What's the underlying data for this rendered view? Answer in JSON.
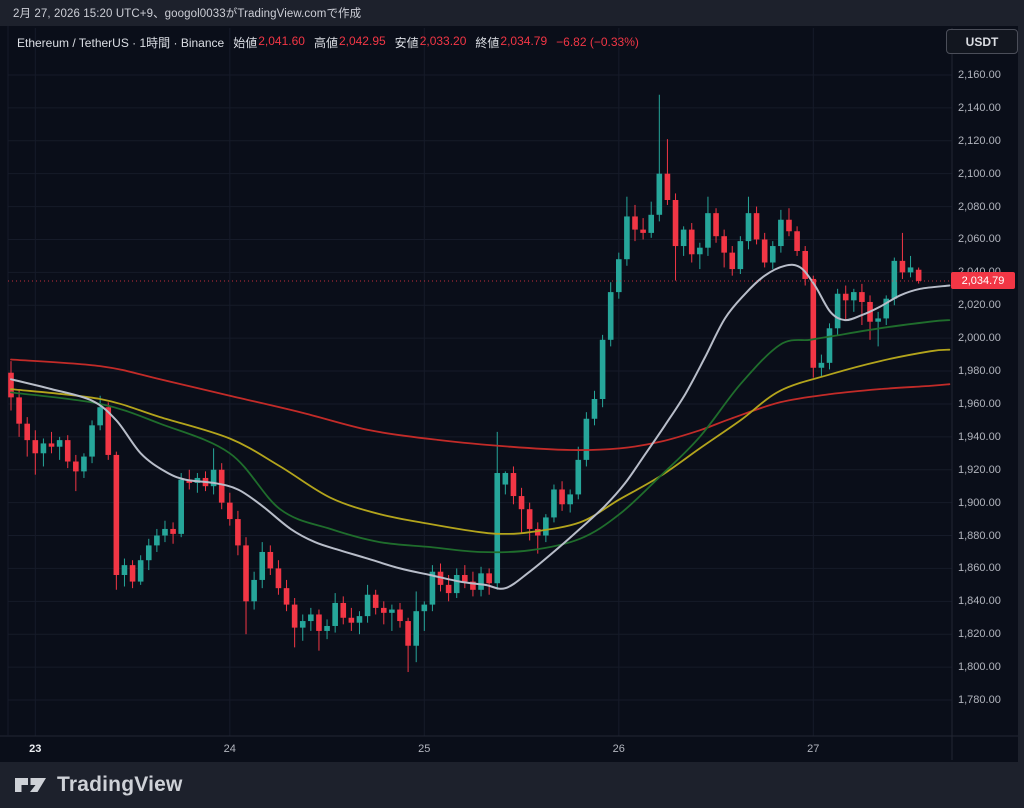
{
  "attribution_bar": {
    "text": "2月 27, 2026 15:20 UTC+9、googol0033がTradingView.comで作成"
  },
  "legend": {
    "symbol_title": "Ethereum / TetherUS · 1時間 · Binance",
    "fields": [
      {
        "label": "始値",
        "value": "2,041.60"
      },
      {
        "label": "高値",
        "value": "2,042.95"
      },
      {
        "label": "安値",
        "value": "2,033.20"
      },
      {
        "label": "終値",
        "value": "2,034.79"
      }
    ],
    "change": "−6.82 (−0.33%)"
  },
  "price_scale": {
    "currency_button": "USDT",
    "labels": [
      "2,160.00",
      "2,140.00",
      "2,120.00",
      "2,100.00",
      "2,080.00",
      "2,060.00",
      "2,040.00",
      "2,020.00",
      "2,000.00",
      "1,980.00",
      "1,960.00",
      "1,940.00",
      "1,920.00",
      "1,900.00",
      "1,880.00",
      "1,860.00",
      "1,840.00",
      "1,820.00",
      "1,800.00",
      "1,780.00"
    ],
    "last_price_label": "2,034.79"
  },
  "footer": {
    "brand": "TradingView"
  },
  "colors": {
    "up": "#26a69a",
    "down": "#f23645",
    "grid": "#161b29",
    "separator": "#222633",
    "axis_text": "#b2b5be",
    "chart_bg": "#0a0e19",
    "frame_bg": "#1d212c"
  },
  "chart_data": {
    "type": "candlestick",
    "symbol": "Ethereum / TetherUS",
    "exchange": "Binance",
    "interval": "1時間",
    "last_price": 2034.79,
    "price_axis": {
      "min": 1780,
      "max": 2160,
      "step": 20
    },
    "time_axis_ticks": [
      {
        "index": 3,
        "label": "23",
        "bold": true
      },
      {
        "index": 27,
        "label": "24",
        "bold": false
      },
      {
        "index": 51,
        "label": "25",
        "bold": false
      },
      {
        "index": 75,
        "label": "26",
        "bold": false
      },
      {
        "index": 99,
        "label": "27",
        "bold": false
      }
    ],
    "candles_ohlc": [
      [
        1979,
        1986,
        1956,
        1964
      ],
      [
        1964,
        1969,
        1940,
        1948
      ],
      [
        1948,
        1952,
        1928,
        1938
      ],
      [
        1938,
        1944,
        1917,
        1930
      ],
      [
        1930,
        1939,
        1922,
        1936
      ],
      [
        1936,
        1943,
        1930,
        1934
      ],
      [
        1934,
        1940,
        1926,
        1938
      ],
      [
        1938,
        1941,
        1921,
        1925
      ],
      [
        1925,
        1929,
        1907,
        1919
      ],
      [
        1919,
        1930,
        1915,
        1928
      ],
      [
        1928,
        1950,
        1924,
        1947
      ],
      [
        1947,
        1965,
        1944,
        1958
      ],
      [
        1958,
        1961,
        1926,
        1929
      ],
      [
        1929,
        1931,
        1847,
        1856
      ],
      [
        1856,
        1866,
        1849,
        1862
      ],
      [
        1862,
        1865,
        1848,
        1852
      ],
      [
        1852,
        1868,
        1850,
        1865
      ],
      [
        1865,
        1878,
        1859,
        1874
      ],
      [
        1874,
        1884,
        1870,
        1880
      ],
      [
        1880,
        1889,
        1876,
        1884
      ],
      [
        1884,
        1888,
        1875,
        1881
      ],
      [
        1881,
        1918,
        1879,
        1914
      ],
      [
        1914,
        1920,
        1908,
        1912
      ],
      [
        1912,
        1918,
        1906,
        1915
      ],
      [
        1915,
        1919,
        1907,
        1910
      ],
      [
        1910,
        1933,
        1905,
        1920
      ],
      [
        1920,
        1924,
        1896,
        1900
      ],
      [
        1900,
        1906,
        1886,
        1890
      ],
      [
        1890,
        1895,
        1868,
        1874
      ],
      [
        1874,
        1879,
        1820,
        1840
      ],
      [
        1840,
        1858,
        1835,
        1853
      ],
      [
        1853,
        1876,
        1848,
        1870
      ],
      [
        1870,
        1874,
        1856,
        1860
      ],
      [
        1860,
        1865,
        1844,
        1848
      ],
      [
        1848,
        1853,
        1834,
        1838
      ],
      [
        1838,
        1842,
        1812,
        1824
      ],
      [
        1824,
        1832,
        1816,
        1828
      ],
      [
        1828,
        1836,
        1822,
        1832
      ],
      [
        1832,
        1835,
        1810,
        1822
      ],
      [
        1822,
        1829,
        1817,
        1825
      ],
      [
        1825,
        1845,
        1821,
        1839
      ],
      [
        1839,
        1843,
        1826,
        1830
      ],
      [
        1830,
        1836,
        1822,
        1827
      ],
      [
        1827,
        1834,
        1820,
        1831
      ],
      [
        1831,
        1850,
        1827,
        1844
      ],
      [
        1844,
        1847,
        1832,
        1836
      ],
      [
        1836,
        1840,
        1826,
        1833
      ],
      [
        1833,
        1838,
        1822,
        1835
      ],
      [
        1835,
        1839,
        1824,
        1828
      ],
      [
        1828,
        1830,
        1797,
        1813
      ],
      [
        1813,
        1846,
        1803,
        1834
      ],
      [
        1834,
        1840,
        1822,
        1838
      ],
      [
        1838,
        1862,
        1834,
        1858
      ],
      [
        1858,
        1863,
        1846,
        1850
      ],
      [
        1850,
        1856,
        1840,
        1845
      ],
      [
        1845,
        1860,
        1842,
        1856
      ],
      [
        1856,
        1862,
        1848,
        1852
      ],
      [
        1852,
        1858,
        1843,
        1847
      ],
      [
        1847,
        1861,
        1843,
        1857
      ],
      [
        1857,
        1860,
        1844,
        1851
      ],
      [
        1851,
        1943,
        1847,
        1918
      ],
      [
        1911,
        1919,
        1905,
        1918
      ],
      [
        1918,
        1922,
        1899,
        1904
      ],
      [
        1904,
        1909,
        1881,
        1896
      ],
      [
        1896,
        1900,
        1877,
        1884
      ],
      [
        1884,
        1888,
        1869,
        1880
      ],
      [
        1880,
        1893,
        1876,
        1891
      ],
      [
        1891,
        1911,
        1888,
        1908
      ],
      [
        1908,
        1913,
        1895,
        1899
      ],
      [
        1899,
        1908,
        1894,
        1905
      ],
      [
        1905,
        1934,
        1902,
        1926
      ],
      [
        1926,
        1955,
        1922,
        1951
      ],
      [
        1951,
        1968,
        1947,
        1963
      ],
      [
        1963,
        2002,
        1958,
        1999
      ],
      [
        1999,
        2034,
        1995,
        2028
      ],
      [
        2028,
        2052,
        2024,
        2048
      ],
      [
        2048,
        2086,
        2044,
        2074
      ],
      [
        2074,
        2081,
        2059,
        2066
      ],
      [
        2066,
        2073,
        2060,
        2064
      ],
      [
        2064,
        2083,
        2061,
        2075
      ],
      [
        2075,
        2148,
        2071,
        2100
      ],
      [
        2100,
        2121,
        2081,
        2084
      ],
      [
        2084,
        2088,
        2035,
        2056
      ],
      [
        2056,
        2068,
        2050,
        2066
      ],
      [
        2066,
        2070,
        2046,
        2051
      ],
      [
        2051,
        2058,
        2042,
        2055
      ],
      [
        2055,
        2086,
        2050,
        2076
      ],
      [
        2076,
        2079,
        2058,
        2062
      ],
      [
        2062,
        2066,
        2043,
        2052
      ],
      [
        2052,
        2056,
        2038,
        2042
      ],
      [
        2042,
        2062,
        2039,
        2059
      ],
      [
        2059,
        2086,
        2054,
        2076
      ],
      [
        2076,
        2080,
        2057,
        2060
      ],
      [
        2060,
        2064,
        2043,
        2046
      ],
      [
        2046,
        2059,
        2042,
        2056
      ],
      [
        2056,
        2078,
        2052,
        2072
      ],
      [
        2072,
        2079,
        2062,
        2065
      ],
      [
        2065,
        2068,
        2050,
        2053
      ],
      [
        2053,
        2056,
        2032,
        2036
      ],
      [
        2036,
        2038,
        1976,
        1982
      ],
      [
        1982,
        1990,
        1977,
        1985
      ],
      [
        1985,
        2009,
        1981,
        2006
      ],
      [
        2006,
        2030,
        2002,
        2027
      ],
      [
        2027,
        2032,
        2011,
        2023
      ],
      [
        2023,
        2030,
        2016,
        2028
      ],
      [
        2028,
        2033,
        2008,
        2022
      ],
      [
        2022,
        2026,
        1999,
        2010
      ],
      [
        2010,
        2016,
        1995,
        2012
      ],
      [
        2012,
        2026,
        2008,
        2024
      ],
      [
        2024,
        2049,
        2020,
        2047
      ],
      [
        2047,
        2064,
        2036,
        2040
      ],
      [
        2040,
        2050,
        2037,
        2043
      ],
      [
        2041.6,
        2042.95,
        2033.2,
        2034.79
      ]
    ],
    "moving_averages": [
      {
        "name": "ma-slow-red",
        "color": "#c22b28",
        "width": 1.8,
        "points": [
          [
            0,
            1987
          ],
          [
            11,
            1983
          ],
          [
            18.4,
            1975
          ],
          [
            27,
            1965
          ],
          [
            35.7,
            1955
          ],
          [
            44.3,
            1944
          ],
          [
            52.9,
            1938
          ],
          [
            61.6,
            1934
          ],
          [
            69,
            1932
          ],
          [
            75.1,
            1933
          ],
          [
            80.1,
            1937
          ],
          [
            85,
            1944
          ],
          [
            88.8,
            1951
          ],
          [
            94.9,
            1961
          ],
          [
            101.1,
            1966
          ],
          [
            107.2,
            1969
          ],
          [
            113.4,
            1971
          ],
          [
            115.8,
            1972
          ]
        ]
      },
      {
        "name": "ma-mid-yellow",
        "color": "#b3a41c",
        "width": 1.8,
        "points": [
          [
            0,
            1969
          ],
          [
            11,
            1963
          ],
          [
            18.4,
            1952
          ],
          [
            27,
            1939
          ],
          [
            33.2,
            1922
          ],
          [
            39.4,
            1903
          ],
          [
            45.5,
            1893
          ],
          [
            51.7,
            1887
          ],
          [
            57.9,
            1882
          ],
          [
            61,
            1881
          ],
          [
            64,
            1882
          ],
          [
            70.2,
            1888
          ],
          [
            75.1,
            1902
          ],
          [
            80.1,
            1916
          ],
          [
            85,
            1933
          ],
          [
            90,
            1950
          ],
          [
            94.9,
            1968
          ],
          [
            101.1,
            1978
          ],
          [
            107.2,
            1986
          ],
          [
            113.4,
            1992
          ],
          [
            115.8,
            1993
          ]
        ]
      },
      {
        "name": "ma-mid-green",
        "color": "#1f6d2c",
        "width": 1.8,
        "points": [
          [
            0,
            1967
          ],
          [
            11,
            1960
          ],
          [
            18.4,
            1948
          ],
          [
            27,
            1930
          ],
          [
            33.2,
            1896
          ],
          [
            39.4,
            1884
          ],
          [
            45.5,
            1876
          ],
          [
            51.7,
            1873
          ],
          [
            57.9,
            1870
          ],
          [
            64,
            1871
          ],
          [
            70.2,
            1878
          ],
          [
            75.1,
            1893
          ],
          [
            80.1,
            1916
          ],
          [
            85,
            1940
          ],
          [
            90,
            1972
          ],
          [
            94.9,
            1996
          ],
          [
            98.6,
            1999
          ],
          [
            101.1,
            2001
          ],
          [
            107.2,
            2006
          ],
          [
            113.4,
            2010
          ],
          [
            115.8,
            2011
          ]
        ]
      },
      {
        "name": "ma-fast-white",
        "color": "#b8bdc9",
        "width": 2,
        "points": [
          [
            0,
            1975
          ],
          [
            5,
            1969
          ],
          [
            10,
            1962
          ],
          [
            13,
            1950
          ],
          [
            16,
            1930
          ],
          [
            19,
            1919
          ],
          [
            21.5,
            1914
          ],
          [
            25,
            1912
          ],
          [
            28,
            1908
          ],
          [
            31,
            1898
          ],
          [
            34.5,
            1884
          ],
          [
            37.5,
            1876
          ],
          [
            40.6,
            1871
          ],
          [
            44,
            1866
          ],
          [
            48,
            1860
          ],
          [
            51.7,
            1856
          ],
          [
            55.4,
            1852
          ],
          [
            58.5,
            1850
          ],
          [
            61,
            1848
          ],
          [
            64,
            1858
          ],
          [
            67.2,
            1871
          ],
          [
            70.2,
            1884
          ],
          [
            73.3,
            1898
          ],
          [
            75.8,
            1912
          ],
          [
            78.2,
            1929
          ],
          [
            80.7,
            1947
          ],
          [
            83.2,
            1966
          ],
          [
            85.6,
            1988
          ],
          [
            88.1,
            2012
          ],
          [
            90.6,
            2027
          ],
          [
            93,
            2038
          ],
          [
            95.5,
            2044
          ],
          [
            97.4,
            2043
          ],
          [
            99.2,
            2032
          ],
          [
            101.1,
            2016
          ],
          [
            102.9,
            2011
          ],
          [
            105,
            2014
          ],
          [
            107.2,
            2019
          ],
          [
            109.7,
            2026
          ],
          [
            112.2,
            2030
          ],
          [
            115.8,
            2032
          ]
        ]
      }
    ]
  }
}
